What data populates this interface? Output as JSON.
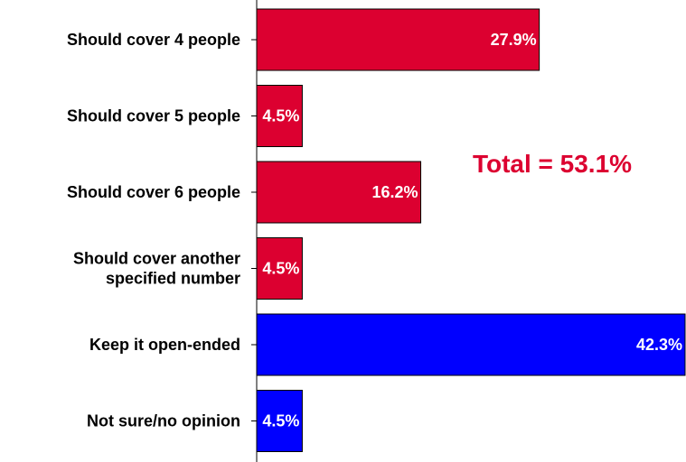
{
  "chart_data": {
    "type": "bar",
    "orientation": "horizontal",
    "categories": [
      [
        "Should cover 4 people"
      ],
      [
        "Should cover 5 people"
      ],
      [
        "Should cover 6 people"
      ],
      [
        "Should cover another",
        "specified number"
      ],
      [
        "Keep it open-ended"
      ],
      [
        "Not sure/no opinion"
      ]
    ],
    "values": [
      27.9,
      4.5,
      16.2,
      4.5,
      42.3,
      4.5
    ],
    "value_labels": [
      "27.9%",
      "4.5%",
      "16.2%",
      "4.5%",
      "42.3%",
      "4.5%"
    ],
    "bar_colors": [
      "#dc0030",
      "#dc0030",
      "#dc0030",
      "#dc0030",
      "#0000ff",
      "#0000ff"
    ],
    "xlim": [
      0,
      42.3
    ],
    "annotation": {
      "text": "Total = 53.1%",
      "color": "#dc0030"
    },
    "grid": false,
    "legend": "none"
  }
}
